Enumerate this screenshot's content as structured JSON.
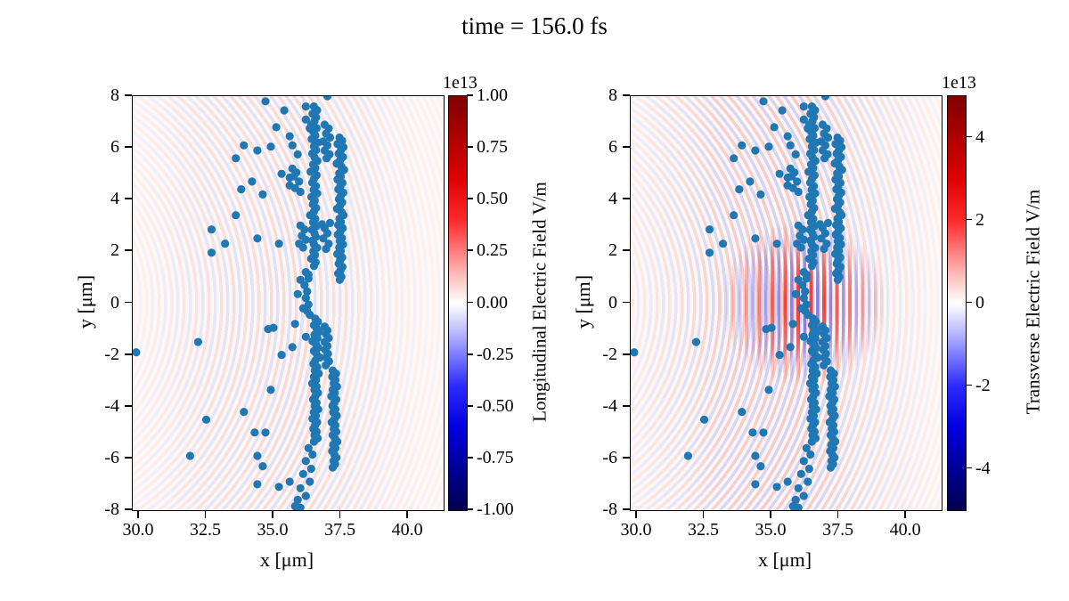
{
  "figure": {
    "background": "#ffffff",
    "suptitle": "time = 156.0 fs"
  },
  "chart_data": {
    "type": "scatter",
    "suptitle": "time = 156.0 fs",
    "shared": {
      "xlabel": "x [μm]",
      "ylabel": "y [μm]",
      "xlim": [
        29.77,
        41.32
      ],
      "ylim": [
        -8,
        8
      ],
      "xtick_values": [
        30,
        32.5,
        35,
        37.5,
        40
      ],
      "xtick_labels": [
        "30.0",
        "32.5",
        "35.0",
        "37.5",
        "40.0"
      ],
      "ytick_values": [
        8,
        6,
        4,
        2,
        0,
        -2,
        -4,
        -6,
        -8
      ],
      "ytick_labels": [
        "8",
        "6",
        "4",
        "2",
        "0",
        "-2",
        "-4",
        "-6",
        "-8"
      ],
      "marker_color": "#1f77b4",
      "field_colormap": "seismic",
      "field_positive_color": "#d73027",
      "field_negative_color": "#4575b4"
    },
    "subplots": [
      {
        "name": "longitudinal",
        "colorbar": {
          "label": "Longitudinal Electric Field V/m",
          "offset": "1e13",
          "vmin": -1.0,
          "vmax": 1.0,
          "tick_values": [
            1.0,
            0.75,
            0.5,
            0.25,
            0.0,
            -0.25,
            -0.5,
            -0.75,
            -1.0
          ],
          "tick_labels": [
            "1.00",
            "0.75",
            "0.50",
            "0.25",
            "0.00",
            "-0.25",
            "-0.50",
            "-0.75",
            "-1.00"
          ]
        }
      },
      {
        "name": "transverse",
        "colorbar": {
          "label": "Transverse Electric Field V/m",
          "offset": "1e13",
          "vmin": -5,
          "vmax": 5,
          "tick_values": [
            4,
            2,
            0,
            -2,
            -4
          ],
          "tick_labels": [
            "4",
            "2",
            "0",
            "-2",
            "-4"
          ]
        }
      }
    ],
    "particles": [
      [
        29.9,
        -1.9
      ],
      [
        32.2,
        -1.5
      ],
      [
        31.9,
        -5.9
      ],
      [
        32.5,
        -4.5
      ],
      [
        32.7,
        2.85
      ],
      [
        33.2,
        2.3
      ],
      [
        32.7,
        1.95
      ],
      [
        34.8,
        -1.0
      ],
      [
        34.9,
        -3.35
      ],
      [
        34.3,
        -5.0
      ],
      [
        34.7,
        -5.0
      ],
      [
        34.4,
        -5.9
      ],
      [
        34.6,
        -6.3
      ],
      [
        34.4,
        -7.0
      ],
      [
        35.2,
        -7.1
      ],
      [
        35.6,
        -6.9
      ],
      [
        33.9,
        -4.2
      ],
      [
        35.3,
        -2.0
      ],
      [
        35.0,
        -0.95
      ],
      [
        34.4,
        2.5
      ],
      [
        35.2,
        2.3
      ],
      [
        33.6,
        3.4
      ],
      [
        36.0,
        0.9
      ],
      [
        35.9,
        0.35
      ],
      [
        36.1,
        -0.2
      ],
      [
        35.8,
        -0.8
      ],
      [
        36.2,
        -1.3
      ],
      [
        35.7,
        -1.7
      ],
      [
        36.35,
        -0.45
      ],
      [
        36.3,
        1.1
      ],
      [
        34.7,
        7.8
      ],
      [
        35.4,
        7.45
      ],
      [
        36.2,
        7.6
      ],
      [
        36.2,
        7.1
      ],
      [
        37.0,
        8.0
      ],
      [
        35.6,
        6.45
      ],
      [
        34.9,
        6.05
      ],
      [
        35.7,
        6.1
      ],
      [
        35.9,
        5.75
      ],
      [
        36.35,
        6.75
      ],
      [
        35.1,
        6.8
      ],
      [
        33.9,
        6.1
      ],
      [
        34.4,
        5.9
      ],
      [
        33.6,
        5.6
      ],
      [
        34.2,
        4.7
      ],
      [
        33.8,
        4.4
      ],
      [
        34.6,
        4.2
      ],
      [
        35.3,
        5.0
      ],
      [
        35.75,
        4.9
      ],
      [
        35.6,
        4.55
      ],
      [
        36.9,
        6.9
      ],
      [
        37.05,
        6.75
      ],
      [
        36.95,
        6.55
      ],
      [
        37.1,
        6.4
      ],
      [
        36.85,
        6.25
      ],
      [
        37.0,
        6.1
      ],
      [
        36.9,
        5.9
      ],
      [
        37.08,
        5.75
      ],
      [
        36.97,
        5.6
      ],
      [
        35.7,
        5.2
      ],
      [
        35.85,
        5.05
      ],
      [
        35.6,
        4.85
      ],
      [
        35.95,
        4.7
      ],
      [
        35.8,
        4.45
      ],
      [
        36.0,
        4.3
      ],
      [
        36.0,
        3.0
      ],
      [
        36.15,
        2.85
      ],
      [
        36.05,
        2.6
      ],
      [
        36.2,
        2.45
      ],
      [
        35.95,
        2.3
      ],
      [
        36.1,
        2.15
      ],
      [
        36.9,
        2.9
      ],
      [
        37.0,
        2.7
      ],
      [
        36.85,
        2.5
      ],
      [
        37.05,
        2.3
      ],
      [
        36.95,
        2.1
      ],
      [
        36.8,
        3.05
      ],
      [
        37.1,
        3.1
      ],
      [
        37.45,
        6.4
      ],
      [
        37.55,
        6.28
      ],
      [
        37.38,
        6.15
      ],
      [
        37.6,
        6.03
      ],
      [
        37.5,
        5.9
      ],
      [
        37.42,
        5.78
      ],
      [
        37.58,
        5.65
      ],
      [
        37.47,
        5.52
      ],
      [
        37.35,
        5.4
      ],
      [
        37.52,
        5.28
      ],
      [
        37.62,
        5.15
      ],
      [
        37.44,
        5.02
      ],
      [
        37.5,
        4.9
      ],
      [
        37.38,
        4.78
      ],
      [
        37.56,
        4.65
      ],
      [
        37.48,
        4.52
      ],
      [
        37.41,
        4.4
      ],
      [
        37.59,
        4.27
      ],
      [
        37.5,
        4.15
      ],
      [
        37.43,
        4.02
      ],
      [
        37.55,
        3.9
      ],
      [
        37.47,
        3.77
      ],
      [
        37.36,
        3.65
      ],
      [
        37.53,
        3.52
      ],
      [
        37.6,
        3.4
      ],
      [
        37.45,
        3.27
      ],
      [
        37.5,
        3.15
      ],
      [
        37.4,
        3.02
      ],
      [
        37.57,
        2.9
      ],
      [
        37.48,
        2.77
      ],
      [
        37.39,
        2.65
      ],
      [
        37.54,
        2.52
      ],
      [
        37.46,
        2.4
      ],
      [
        37.58,
        2.27
      ],
      [
        37.44,
        2.15
      ],
      [
        37.5,
        2.02
      ],
      [
        37.37,
        1.9
      ],
      [
        37.55,
        1.77
      ],
      [
        37.47,
        1.65
      ],
      [
        37.42,
        1.52
      ],
      [
        37.56,
        1.4
      ],
      [
        37.49,
        1.27
      ],
      [
        37.4,
        1.15
      ],
      [
        37.52,
        1.02
      ],
      [
        37.46,
        0.9
      ],
      [
        36.9,
        -0.9
      ],
      [
        37.0,
        -1.05
      ],
      [
        36.95,
        -1.2
      ],
      [
        37.05,
        -1.35
      ],
      [
        36.9,
        -1.5
      ],
      [
        37.0,
        -1.65
      ],
      [
        36.92,
        -1.8
      ],
      [
        37.02,
        -1.95
      ],
      [
        36.96,
        -2.1
      ],
      [
        37.06,
        -2.25
      ],
      [
        36.94,
        -2.4
      ],
      [
        37.2,
        -2.6
      ],
      [
        37.32,
        -2.72
      ],
      [
        37.18,
        -2.85
      ],
      [
        37.3,
        -2.97
      ],
      [
        37.24,
        -3.1
      ],
      [
        37.36,
        -3.22
      ],
      [
        37.2,
        -3.35
      ],
      [
        37.28,
        -3.47
      ],
      [
        37.15,
        -3.6
      ],
      [
        37.33,
        -3.72
      ],
      [
        37.26,
        -3.85
      ],
      [
        37.19,
        -3.97
      ],
      [
        37.3,
        -4.1
      ],
      [
        37.22,
        -4.22
      ],
      [
        37.35,
        -4.35
      ],
      [
        37.27,
        -4.47
      ],
      [
        37.16,
        -4.6
      ],
      [
        37.3,
        -4.72
      ],
      [
        37.24,
        -4.85
      ],
      [
        37.33,
        -4.97
      ],
      [
        37.2,
        -5.1
      ],
      [
        37.28,
        -5.22
      ],
      [
        37.37,
        -5.35
      ],
      [
        37.22,
        -5.47
      ],
      [
        37.3,
        -5.6
      ],
      [
        37.18,
        -5.72
      ],
      [
        37.26,
        -5.85
      ],
      [
        37.34,
        -5.97
      ],
      [
        37.23,
        -6.1
      ],
      [
        37.29,
        -6.22
      ],
      [
        37.2,
        -6.35
      ],
      [
        36.5,
        7.6
      ],
      [
        36.62,
        7.46
      ],
      [
        36.45,
        7.32
      ],
      [
        36.58,
        7.18
      ],
      [
        36.52,
        7.04
      ],
      [
        36.4,
        6.9
      ],
      [
        36.6,
        6.76
      ],
      [
        36.48,
        6.62
      ],
      [
        36.55,
        6.48
      ],
      [
        36.42,
        6.34
      ],
      [
        36.65,
        6.2
      ],
      [
        36.5,
        6.06
      ],
      [
        36.58,
        5.92
      ],
      [
        36.44,
        5.78
      ],
      [
        36.52,
        5.64
      ],
      [
        36.63,
        5.5
      ],
      [
        36.47,
        5.36
      ],
      [
        36.55,
        5.22
      ],
      [
        36.38,
        5.08
      ],
      [
        36.6,
        4.94
      ],
      [
        36.5,
        4.8
      ],
      [
        36.44,
        4.66
      ],
      [
        36.57,
        4.52
      ],
      [
        36.49,
        4.38
      ],
      [
        36.62,
        4.24
      ],
      [
        36.41,
        4.1
      ],
      [
        36.53,
        3.96
      ],
      [
        36.46,
        3.82
      ],
      [
        36.58,
        3.68
      ],
      [
        36.5,
        3.54
      ],
      [
        36.36,
        3.4
      ],
      [
        36.55,
        3.26
      ],
      [
        36.47,
        3.12
      ],
      [
        36.6,
        2.98
      ],
      [
        36.43,
        2.84
      ],
      [
        36.52,
        2.7
      ],
      [
        36.57,
        2.56
      ],
      [
        36.45,
        2.42
      ],
      [
        36.5,
        2.28
      ],
      [
        36.62,
        2.14
      ],
      [
        36.48,
        2.0
      ],
      [
        36.54,
        1.86
      ],
      [
        36.4,
        1.72
      ],
      [
        36.56,
        1.58
      ],
      [
        36.5,
        1.44
      ],
      [
        36.2,
        1.2
      ],
      [
        36.3,
        0.95
      ],
      [
        36.15,
        0.7
      ],
      [
        36.25,
        0.45
      ],
      [
        36.2,
        0.2
      ],
      [
        36.3,
        -0.05
      ],
      [
        36.25,
        -0.3
      ],
      [
        36.55,
        -0.6
      ],
      [
        36.65,
        -0.72
      ],
      [
        36.5,
        -0.85
      ],
      [
        36.6,
        -0.97
      ],
      [
        36.7,
        -1.1
      ],
      [
        36.52,
        -1.22
      ],
      [
        36.63,
        -1.35
      ],
      [
        36.45,
        -1.47
      ],
      [
        36.58,
        -1.6
      ],
      [
        36.66,
        -1.72
      ],
      [
        36.5,
        -1.85
      ],
      [
        36.6,
        -1.97
      ],
      [
        36.72,
        -2.1
      ],
      [
        36.55,
        -2.22
      ],
      [
        36.48,
        -2.35
      ],
      [
        36.62,
        -2.47
      ],
      [
        36.53,
        -2.6
      ],
      [
        36.68,
        -2.72
      ],
      [
        36.5,
        -2.85
      ],
      [
        36.58,
        -2.97
      ],
      [
        36.44,
        -3.1
      ],
      [
        36.6,
        -3.22
      ],
      [
        36.52,
        -3.35
      ],
      [
        36.65,
        -3.47
      ],
      [
        36.55,
        -3.6
      ],
      [
        36.47,
        -3.72
      ],
      [
        36.6,
        -3.85
      ],
      [
        36.53,
        -3.97
      ],
      [
        36.66,
        -4.1
      ],
      [
        36.5,
        -4.22
      ],
      [
        36.57,
        -4.35
      ],
      [
        36.45,
        -4.47
      ],
      [
        36.62,
        -4.6
      ],
      [
        36.54,
        -4.72
      ],
      [
        36.48,
        -4.85
      ],
      [
        36.6,
        -4.97
      ],
      [
        36.52,
        -5.1
      ],
      [
        36.64,
        -5.22
      ],
      [
        36.5,
        -5.35
      ],
      [
        36.3,
        -5.6
      ],
      [
        36.45,
        -5.85
      ],
      [
        36.2,
        -6.1
      ],
      [
        36.4,
        -6.4
      ],
      [
        36.1,
        -6.6
      ],
      [
        36.35,
        -6.9
      ],
      [
        36.0,
        -7.15
      ],
      [
        36.2,
        -7.45
      ],
      [
        35.9,
        -7.6
      ],
      [
        36.0,
        -7.9
      ],
      [
        35.8,
        -7.85
      ]
    ]
  }
}
